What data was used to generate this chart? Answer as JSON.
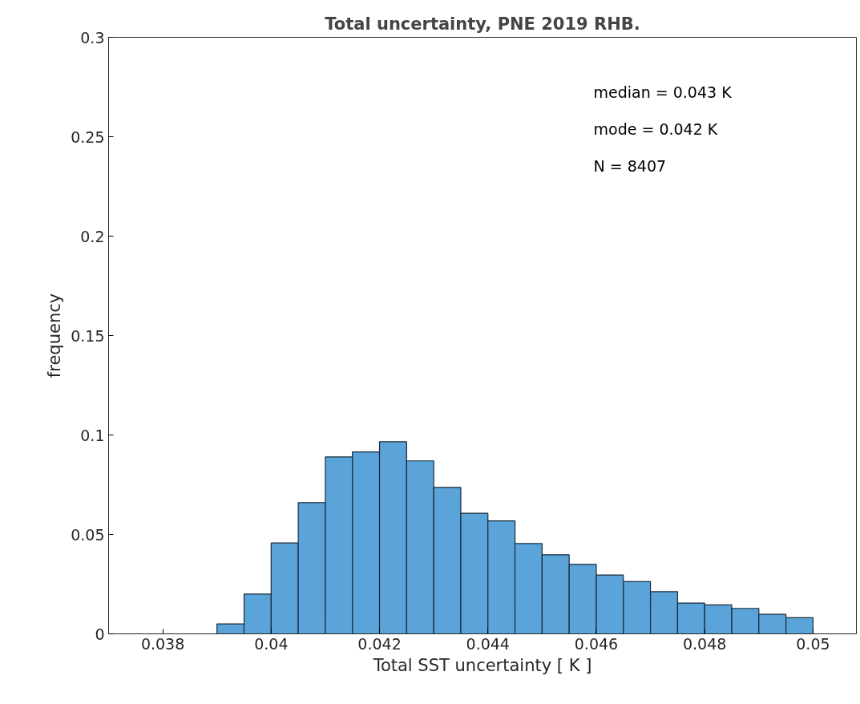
{
  "chart_data": {
    "type": "histogram",
    "title": "Total uncertainty, PNE 2019 RHB.",
    "xlabel": "Total SST uncertainty [ K ]",
    "ylabel": "frequency",
    "bins": [
      0.039,
      0.0395,
      0.04,
      0.0405,
      0.041,
      0.0415,
      0.042,
      0.0425,
      0.043,
      0.0435,
      0.044,
      0.0445,
      0.045,
      0.0455,
      0.046,
      0.0465,
      0.047,
      0.0475,
      0.048,
      0.0485,
      0.049,
      0.0495,
      0.05
    ],
    "values": [
      0.005,
      0.02,
      0.0457,
      0.066,
      0.089,
      0.0915,
      0.0966,
      0.087,
      0.0736,
      0.0606,
      0.0568,
      0.0454,
      0.0398,
      0.0349,
      0.0296,
      0.0263,
      0.0212,
      0.0155,
      0.0146,
      0.0128,
      0.0098,
      0.0081
    ],
    "color": "#5ba4d9",
    "xlim": [
      0.037,
      0.0508
    ],
    "xticks": [
      {
        "value": 0.038,
        "label": "0.038"
      },
      {
        "value": 0.04,
        "label": "0.04"
      },
      {
        "value": 0.042,
        "label": "0.042"
      },
      {
        "value": 0.044,
        "label": "0.044"
      },
      {
        "value": 0.046,
        "label": "0.046"
      },
      {
        "value": 0.048,
        "label": "0.048"
      },
      {
        "value": 0.05,
        "label": "0.05"
      }
    ],
    "ylim": [
      0,
      0.3
    ],
    "yticks": [
      0,
      0.05,
      0.1,
      0.15,
      0.2,
      0.25,
      0.3
    ],
    "grid": false,
    "annotations": [
      "median = 0.043 K",
      "mode   = 0.042 K",
      "N   = 8407"
    ]
  }
}
